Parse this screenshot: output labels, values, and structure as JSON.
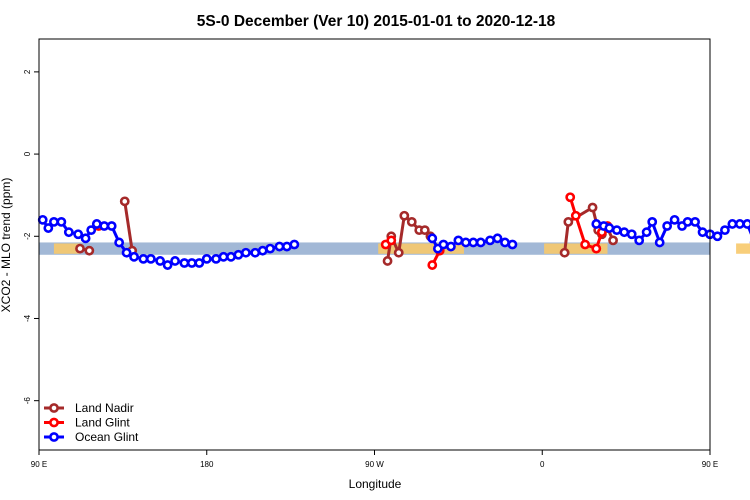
{
  "chart_data": {
    "type": "line",
    "title": "5S-0 December (Ver 10)   2015-01-01 to 2020-12-18",
    "xlabel": "Longitude",
    "ylabel": "XCO2 - MLO trend (ppm)",
    "xlim": [
      90,
      450
    ],
    "ylim": [
      -7.2,
      2.8
    ],
    "x_ticks": [
      {
        "value": 90,
        "label": "90 E"
      },
      {
        "value": 180,
        "label": "180"
      },
      {
        "value": 270,
        "label": "90 W"
      },
      {
        "value": 360,
        "label": "0"
      },
      {
        "value": 450,
        "label": "90 E"
      },
      {
        "value": 540,
        "label": "180"
      }
    ],
    "y_ticks": [
      {
        "value": 2,
        "label": "2"
      },
      {
        "value": 0,
        "label": "0"
      },
      {
        "value": -2,
        "label": "-2"
      },
      {
        "value": -4,
        "label": "-4"
      },
      {
        "value": -6,
        "label": "-6"
      }
    ],
    "reference_band": {
      "y_min": -2.45,
      "y_max": -2.15,
      "color": "#a2b8d6"
    },
    "land_shading": {
      "color": "#f7c96b",
      "ranges": [
        [
          98,
          112
        ],
        [
          272,
          318
        ],
        [
          361,
          395
        ],
        [
          464,
          478
        ],
        [
          482,
          491
        ]
      ]
    },
    "legend": {
      "position": "bottom-left",
      "entries": [
        {
          "label": "Land Nadir",
          "color": "#a52a2a"
        },
        {
          "label": "Land Glint",
          "color": "#ff0000"
        },
        {
          "label": "Ocean Glint",
          "color": "#0000ff"
        }
      ]
    },
    "series": [
      {
        "name": "Land Nadir",
        "color": "#a52a2a",
        "segments": [
          [
            [
              112,
              -2.3
            ],
            [
              117,
              -2.35
            ]
          ],
          [
            [
              136,
              -1.15
            ],
            [
              140,
              -2.35
            ]
          ],
          [
            [
              277,
              -2.6
            ],
            [
              279,
              -2.0
            ],
            [
              283,
              -2.4
            ],
            [
              286,
              -1.5
            ],
            [
              290,
              -1.65
            ],
            [
              294,
              -1.85
            ],
            [
              297,
              -1.85
            ],
            [
              300,
              -2.0
            ]
          ],
          [
            [
              372,
              -2.4
            ],
            [
              374,
              -1.65
            ],
            [
              387,
              -1.3
            ],
            [
              390,
              -1.85
            ],
            [
              392,
              -1.95
            ],
            [
              395,
              -1.8
            ],
            [
              398,
              -2.1
            ]
          ],
          [
            [
              477,
              -2.3
            ],
            [
              485,
              -2.35
            ]
          ],
          [
            [
              495,
              -1.15
            ],
            [
              499,
              -2.35
            ]
          ]
        ]
      },
      {
        "name": "Land Glint",
        "color": "#ff0000",
        "segments": [
          [
            [
              122,
              -1.75
            ]
          ],
          [
            [
              276,
              -2.2
            ],
            [
              279,
              -2.1
            ]
          ],
          [
            [
              301,
              -2.7
            ],
            [
              305,
              -2.35
            ]
          ],
          [
            [
              375,
              -1.05
            ],
            [
              378,
              -1.5
            ],
            [
              383,
              -2.2
            ],
            [
              389,
              -2.3
            ],
            [
              392,
              -1.9
            ],
            [
              395,
              -1.75
            ]
          ],
          [
            [
              479,
              -1.75
            ]
          ]
        ]
      },
      {
        "name": "Ocean Glint",
        "color": "#0000ff",
        "segments": [
          [
            [
              92,
              -1.6
            ],
            [
              95,
              -1.8
            ],
            [
              98,
              -1.65
            ],
            [
              102,
              -1.65
            ],
            [
              106,
              -1.9
            ],
            [
              111,
              -1.95
            ],
            [
              115,
              -2.05
            ],
            [
              118,
              -1.85
            ],
            [
              121,
              -1.7
            ],
            [
              125,
              -1.75
            ],
            [
              129,
              -1.75
            ],
            [
              133,
              -2.15
            ],
            [
              137,
              -2.4
            ],
            [
              141,
              -2.5
            ],
            [
              146,
              -2.55
            ],
            [
              150,
              -2.55
            ],
            [
              155,
              -2.6
            ],
            [
              159,
              -2.7
            ],
            [
              163,
              -2.6
            ],
            [
              168,
              -2.65
            ],
            [
              172,
              -2.65
            ],
            [
              176,
              -2.65
            ],
            [
              180,
              -2.55
            ],
            [
              185,
              -2.55
            ],
            [
              189,
              -2.5
            ],
            [
              193,
              -2.5
            ],
            [
              197,
              -2.45
            ],
            [
              201,
              -2.4
            ],
            [
              206,
              -2.4
            ],
            [
              210,
              -2.35
            ],
            [
              214,
              -2.3
            ],
            [
              219,
              -2.25
            ],
            [
              223,
              -2.25
            ],
            [
              227,
              -2.2
            ]
          ],
          [
            [
              301,
              -2.05
            ],
            [
              304,
              -2.3
            ],
            [
              307,
              -2.2
            ],
            [
              311,
              -2.25
            ],
            [
              315,
              -2.1
            ],
            [
              319,
              -2.15
            ],
            [
              323,
              -2.15
            ],
            [
              327,
              -2.15
            ],
            [
              332,
              -2.1
            ],
            [
              336,
              -2.05
            ],
            [
              340,
              -2.15
            ],
            [
              344,
              -2.2
            ]
          ],
          [
            [
              389,
              -1.7
            ],
            [
              393,
              -1.75
            ],
            [
              396,
              -1.8
            ],
            [
              400,
              -1.85
            ],
            [
              404,
              -1.9
            ],
            [
              408,
              -1.95
            ],
            [
              412,
              -2.1
            ],
            [
              416,
              -1.9
            ],
            [
              419,
              -1.65
            ],
            [
              423,
              -2.15
            ],
            [
              427,
              -1.75
            ],
            [
              431,
              -1.6
            ],
            [
              435,
              -1.75
            ],
            [
              438,
              -1.65
            ],
            [
              442,
              -1.65
            ],
            [
              446,
              -1.9
            ],
            [
              450,
              -1.95
            ],
            [
              454,
              -2.0
            ],
            [
              458,
              -1.85
            ],
            [
              462,
              -1.7
            ],
            [
              466,
              -1.7
            ],
            [
              470,
              -1.7
            ],
            [
              474,
              -2.15
            ],
            [
              478,
              -2.4
            ],
            [
              482,
              -2.45
            ],
            [
              486,
              -2.5
            ],
            [
              490,
              -2.5
            ],
            [
              494,
              -2.55
            ],
            [
              498,
              -2.65
            ]
          ]
        ]
      }
    ]
  }
}
